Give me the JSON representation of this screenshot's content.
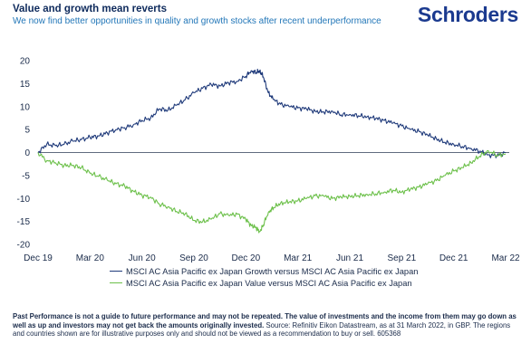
{
  "header": {
    "title": "Value and growth mean reverts",
    "subtitle": "We now find better opportunities in quality and growth stocks after recent underperformance",
    "logo": "Schroders"
  },
  "colors": {
    "growth": "#1f3a7a",
    "value": "#6cc04a",
    "axis": "#2b3a55",
    "title": "#0e2a5c",
    "subtitle": "#2377b8"
  },
  "footnote": {
    "bold": "Past Performance is not a guide to future performance and may not be repeated. The value of investments and the income from them may go down as well as up and investors may not get back the amounts originally invested.",
    "normal": "Source: Refinitiv Eikon Datastream, as at 31 March 2022, in GBP. The regions and countries shown are for illustrative purposes only and should not be viewed as a recommendation to buy or sell. 605368"
  },
  "chart_data": {
    "type": "line",
    "x_tick_labels": [
      "Dec 19",
      "Mar 20",
      "Jun 20",
      "Sep 20",
      "Dec 20",
      "Mar 21",
      "Jun 21",
      "Sep 21",
      "Dec 21",
      "Mar 22"
    ],
    "y_ticks": [
      20,
      15,
      10,
      5,
      0,
      -5,
      -10,
      -15,
      -20
    ],
    "ylim": [
      -20,
      20
    ],
    "xlim": [
      "Dec 19",
      "Mar 22"
    ],
    "x_unit": "months since Dec 19",
    "grid": false,
    "legend_position": "bottom",
    "series": [
      {
        "name": "MSCI AC Asia Pacific ex Japan Growth versus MSCI AC Asia Pacific ex Japan",
        "color": "#1f3a7a",
        "points": [
          [
            0,
            0
          ],
          [
            0.5,
            1.8
          ],
          [
            1,
            1.5
          ],
          [
            1.5,
            1.8
          ],
          [
            2,
            2.5
          ],
          [
            2.5,
            2.8
          ],
          [
            3,
            3.3
          ],
          [
            3.5,
            3.6
          ],
          [
            4,
            4.3
          ],
          [
            4.5,
            5
          ],
          [
            5,
            5.4
          ],
          [
            5.5,
            6
          ],
          [
            6,
            7
          ],
          [
            6.5,
            7.5
          ],
          [
            7,
            9.5
          ],
          [
            7.5,
            9.2
          ],
          [
            8,
            10.3
          ],
          [
            8.5,
            11.5
          ],
          [
            9,
            13
          ],
          [
            9.5,
            14
          ],
          [
            10,
            14.8
          ],
          [
            10.5,
            14.5
          ],
          [
            11,
            15.2
          ],
          [
            11.5,
            15.5
          ],
          [
            12,
            16.6
          ],
          [
            12.3,
            17.8
          ],
          [
            12.6,
            17.4
          ],
          [
            12.8,
            17.8
          ],
          [
            13,
            16.5
          ],
          [
            13.3,
            13
          ],
          [
            13.6,
            11.5
          ],
          [
            14,
            10.5
          ],
          [
            14.5,
            10
          ],
          [
            15,
            9.7
          ],
          [
            15.5,
            9.5
          ],
          [
            16,
            9
          ],
          [
            16.5,
            8.8
          ],
          [
            17,
            9
          ],
          [
            17.5,
            8.2
          ],
          [
            18,
            8.3
          ],
          [
            18.5,
            8
          ],
          [
            19,
            7.8
          ],
          [
            19.5,
            7.4
          ],
          [
            20,
            7
          ],
          [
            20.5,
            6.4
          ],
          [
            21,
            5.8
          ],
          [
            21.5,
            5
          ],
          [
            22,
            4.6
          ],
          [
            22.5,
            3.8
          ],
          [
            23,
            3
          ],
          [
            23.5,
            2.2
          ],
          [
            24,
            1.8
          ],
          [
            24.5,
            1.3
          ],
          [
            25,
            0.9
          ],
          [
            25.5,
            0.3
          ],
          [
            26,
            -0.5
          ],
          [
            26.5,
            -0.7
          ],
          [
            27,
            0
          ]
        ]
      },
      {
        "name": "MSCI AC Asia Pacific ex Japan Value versus MSCI AC Asia Pacific ex Japan",
        "color": "#6cc04a",
        "points": [
          [
            0,
            0
          ],
          [
            0.5,
            -1.8
          ],
          [
            1,
            -2.2
          ],
          [
            1.5,
            -2.8
          ],
          [
            2,
            -2.8
          ],
          [
            2.5,
            -3.3
          ],
          [
            3,
            -4.5
          ],
          [
            3.5,
            -5.2
          ],
          [
            4,
            -6
          ],
          [
            4.5,
            -6.8
          ],
          [
            5,
            -7.3
          ],
          [
            5.5,
            -8.4
          ],
          [
            6,
            -9.3
          ],
          [
            6.5,
            -9.7
          ],
          [
            7,
            -11.2
          ],
          [
            7.5,
            -11.8
          ],
          [
            8,
            -12.8
          ],
          [
            8.5,
            -13.3
          ],
          [
            9,
            -14.8
          ],
          [
            9.5,
            -15.1
          ],
          [
            10,
            -14.5
          ],
          [
            10.5,
            -13.3
          ],
          [
            11,
            -13.7
          ],
          [
            11.5,
            -13.4
          ],
          [
            12,
            -14.6
          ],
          [
            12.3,
            -15.8
          ],
          [
            12.6,
            -16.4
          ],
          [
            12.8,
            -17.2
          ],
          [
            13,
            -15.8
          ],
          [
            13.3,
            -13
          ],
          [
            13.6,
            -12
          ],
          [
            14,
            -11
          ],
          [
            14.5,
            -10.8
          ],
          [
            15,
            -10.5
          ],
          [
            15.5,
            -10
          ],
          [
            16,
            -9.4
          ],
          [
            16.5,
            -9.5
          ],
          [
            17,
            -10
          ],
          [
            17.5,
            -9.7
          ],
          [
            18,
            -9.5
          ],
          [
            18.5,
            -9.4
          ],
          [
            19,
            -9.1
          ],
          [
            19.5,
            -9
          ],
          [
            20,
            -8.6
          ],
          [
            20.5,
            -8.2
          ],
          [
            21,
            -8.6
          ],
          [
            21.5,
            -8
          ],
          [
            22,
            -7.5
          ],
          [
            22.5,
            -6.8
          ],
          [
            23,
            -6.1
          ],
          [
            23.5,
            -5
          ],
          [
            24,
            -4
          ],
          [
            24.5,
            -3.3
          ],
          [
            25,
            -2.2
          ],
          [
            25.5,
            -0.8
          ],
          [
            26,
            0.4
          ],
          [
            26.5,
            -0.6
          ],
          [
            27,
            -0.3
          ]
        ]
      }
    ]
  }
}
